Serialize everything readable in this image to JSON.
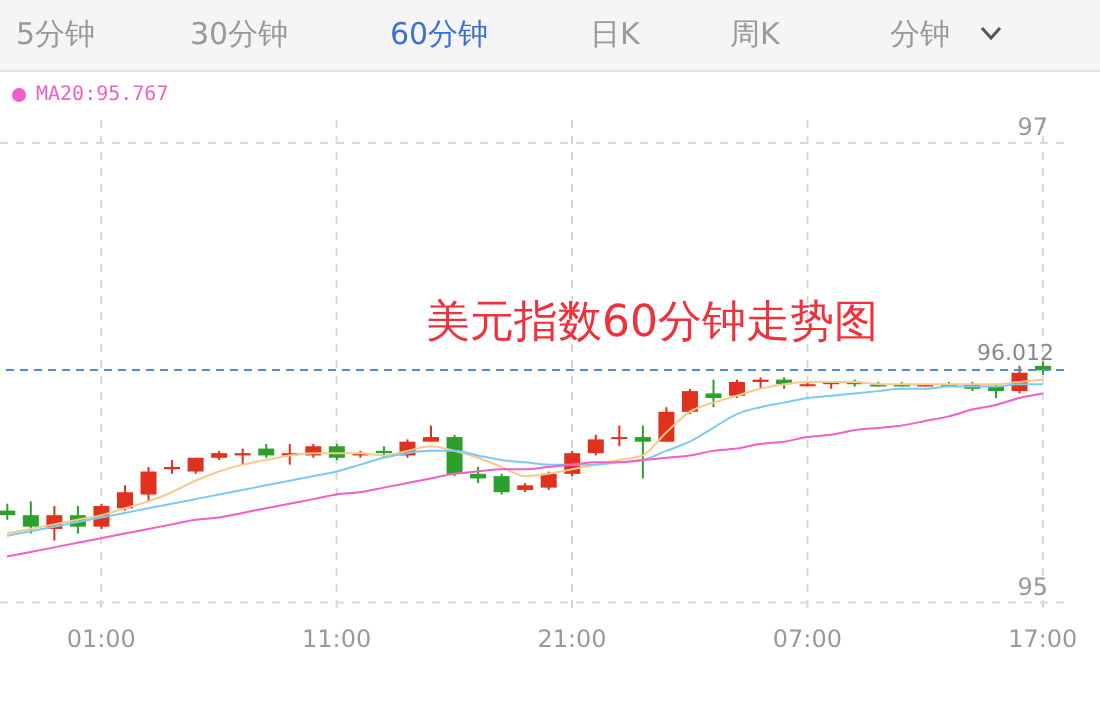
{
  "chart_data": {
    "type": "candlestick",
    "title": "美元指数60分钟走势图",
    "annotations": [
      "5分钟",
      "30分钟",
      "60分钟",
      "日K",
      "周K",
      "分钟"
    ],
    "categories": [
      null,
      null,
      null,
      null,
      "01:00",
      null,
      null,
      null,
      null,
      null,
      null,
      null,
      null,
      null,
      "11:00",
      null,
      null,
      null,
      null,
      null,
      null,
      null,
      null,
      null,
      "21:00",
      null,
      null,
      null,
      null,
      null,
      null,
      null,
      null,
      null,
      "07:00",
      null,
      null,
      null,
      null,
      null,
      null,
      null,
      null,
      null,
      "17:00"
    ],
    "ohlc": [
      [
        95.4,
        95.43,
        95.36,
        95.38
      ],
      [
        95.38,
        95.44,
        95.3,
        95.33
      ],
      [
        95.32,
        95.42,
        95.27,
        95.38
      ],
      [
        95.38,
        95.42,
        95.3,
        95.33
      ],
      [
        95.33,
        95.43,
        95.32,
        95.42
      ],
      [
        95.41,
        95.51,
        95.4,
        95.48
      ],
      [
        95.47,
        95.59,
        95.44,
        95.57
      ],
      [
        95.58,
        95.62,
        95.56,
        95.59
      ],
      [
        95.57,
        95.63,
        95.56,
        95.63
      ],
      [
        95.63,
        95.66,
        95.62,
        95.65
      ],
      [
        95.64,
        95.67,
        95.6,
        95.65
      ],
      [
        95.67,
        95.69,
        95.63,
        95.64
      ],
      [
        95.64,
        95.69,
        95.6,
        95.65
      ],
      [
        95.64,
        95.69,
        95.63,
        95.68
      ],
      [
        95.68,
        95.69,
        95.62,
        95.63
      ],
      [
        95.64,
        95.66,
        95.63,
        95.65
      ],
      [
        95.66,
        95.68,
        95.63,
        95.65
      ],
      [
        95.64,
        95.71,
        95.63,
        95.7
      ],
      [
        95.7,
        95.77,
        95.7,
        95.72
      ],
      [
        95.72,
        95.73,
        95.55,
        95.56
      ],
      [
        95.56,
        95.59,
        95.52,
        95.54
      ],
      [
        95.55,
        95.56,
        95.47,
        95.48
      ],
      [
        95.49,
        95.52,
        95.48,
        95.51
      ],
      [
        95.5,
        95.57,
        95.49,
        95.56
      ],
      [
        95.56,
        95.66,
        95.55,
        95.65
      ],
      [
        95.65,
        95.73,
        95.64,
        95.71
      ],
      [
        95.72,
        95.77,
        95.68,
        95.72
      ],
      [
        95.72,
        95.77,
        95.54,
        95.7
      ],
      [
        95.7,
        95.85,
        95.7,
        95.83
      ],
      [
        95.83,
        95.93,
        95.82,
        95.92
      ],
      [
        95.91,
        95.97,
        95.85,
        95.89
      ],
      [
        95.9,
        95.97,
        95.89,
        95.96
      ],
      [
        95.96,
        95.98,
        95.93,
        95.97
      ],
      [
        95.97,
        95.98,
        95.93,
        95.95
      ],
      [
        95.95,
        95.96,
        95.94,
        95.95
      ],
      [
        95.95,
        95.96,
        95.93,
        95.96
      ],
      [
        95.96,
        95.97,
        95.94,
        95.95
      ],
      [
        95.95,
        95.96,
        95.94,
        95.94
      ],
      [
        95.95,
        95.96,
        95.94,
        95.94
      ],
      [
        95.94,
        95.95,
        95.94,
        95.95
      ],
      [
        95.95,
        95.96,
        95.94,
        95.94
      ],
      [
        95.95,
        95.96,
        95.92,
        95.93
      ],
      [
        95.94,
        95.95,
        95.89,
        95.92
      ],
      [
        95.92,
        96.03,
        95.91,
        96.0
      ],
      [
        96.03,
        96.05,
        95.99,
        96.01
      ]
    ],
    "colors": [
      "#2ca02c",
      "#2ca02c",
      "#e0301e",
      "#2ca02c",
      "#e0301e",
      "#e0301e",
      "#e0301e",
      "#e0301e",
      "#e0301e",
      "#e0301e",
      "#e0301e",
      "#2ca02c",
      "#e0301e",
      "#e0301e",
      "#2ca02c",
      "#e0301e",
      "#2ca02c",
      "#e0301e",
      "#e0301e",
      "#2ca02c",
      "#2ca02c",
      "#2ca02c",
      "#e0301e",
      "#e0301e",
      "#e0301e",
      "#e0301e",
      "#e0301e",
      "#2ca02c",
      "#e0301e",
      "#e0301e",
      "#2ca02c",
      "#e0301e",
      "#e0301e",
      "#2ca02c",
      "#e0301e",
      "#e0301e",
      "#2ca02c",
      "#2ca02c",
      "#2ca02c",
      "#e0301e",
      "#2ca02c",
      "#2ca02c",
      "#2ca02c",
      "#e0301e",
      "#2ca02c"
    ],
    "series": [
      {
        "type": "line",
        "color": "#f9c98a",
        "values": [
          95.3,
          95.32,
          95.34,
          95.36,
          95.38,
          95.41,
          95.44,
          95.48,
          95.53,
          95.57,
          95.6,
          95.62,
          95.64,
          95.65,
          95.65,
          95.65,
          95.64,
          95.66,
          95.68,
          95.66,
          95.63,
          95.59,
          95.55,
          95.56,
          95.58,
          95.6,
          95.62,
          95.64,
          95.74,
          95.83,
          95.87,
          95.9,
          95.93,
          95.95,
          95.96,
          95.96,
          95.96,
          95.95,
          95.95,
          95.95,
          95.95,
          95.95,
          95.95,
          95.96,
          95.97
        ]
      },
      {
        "type": "line",
        "color": "#7ec8f2",
        "values": [
          95.29,
          95.31,
          95.33,
          95.35,
          95.37,
          95.39,
          95.41,
          95.43,
          95.45,
          95.47,
          95.49,
          95.51,
          95.53,
          95.55,
          95.57,
          95.6,
          95.63,
          95.65,
          95.66,
          95.66,
          95.64,
          95.62,
          95.61,
          95.6,
          95.6,
          95.6,
          95.61,
          95.62,
          95.66,
          95.7,
          95.76,
          95.82,
          95.85,
          95.87,
          95.89,
          95.9,
          95.91,
          95.92,
          95.93,
          95.93,
          95.94,
          95.94,
          95.94,
          95.95,
          95.95
        ]
      },
      {
        "type": "line",
        "name": "MA20:95.767",
        "color": "#f25fc8",
        "values": [
          95.2,
          95.22,
          95.24,
          95.26,
          95.28,
          95.3,
          95.32,
          95.34,
          95.36,
          95.37,
          95.39,
          95.41,
          95.43,
          95.45,
          95.47,
          95.48,
          95.5,
          95.52,
          95.54,
          95.56,
          95.57,
          95.58,
          95.58,
          95.59,
          95.6,
          95.61,
          95.61,
          95.62,
          95.63,
          95.64,
          95.66,
          95.67,
          95.69,
          95.7,
          95.72,
          95.73,
          95.75,
          95.76,
          95.77,
          95.79,
          95.81,
          95.84,
          95.86,
          95.89,
          95.91
        ]
      }
    ],
    "ylim": [
      94.95,
      97.1
    ],
    "yticks": [
      95,
      97
    ],
    "grid": true,
    "legend": "top left",
    "ref_lines": [
      {
        "axis": "y",
        "value": 96.012,
        "label": "96.012",
        "color": "#4a90d9",
        "line_style": "dashed"
      }
    ]
  }
}
